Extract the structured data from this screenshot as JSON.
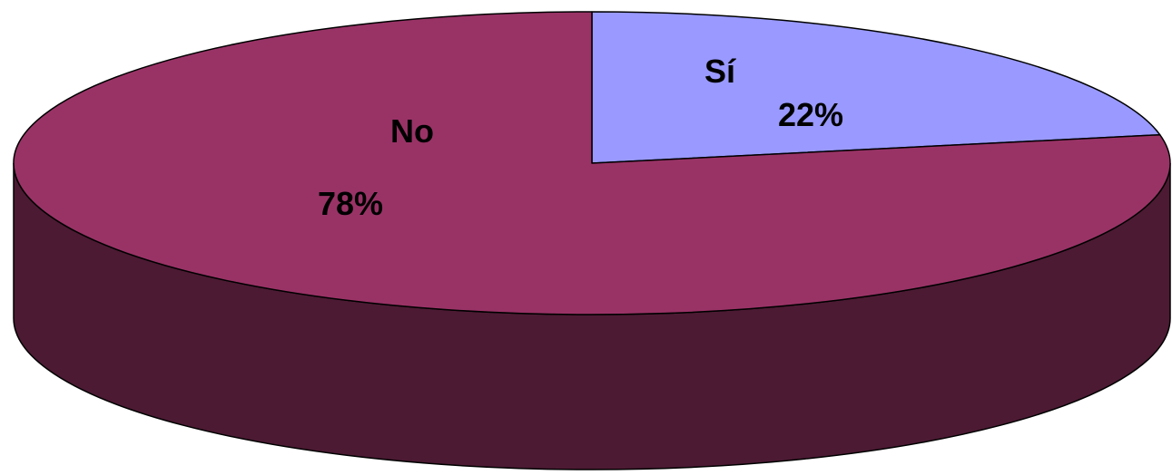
{
  "chart_data": {
    "type": "pie",
    "style": "3d",
    "title": "",
    "slices": [
      {
        "label": "Sí",
        "value": 22,
        "value_label": "22%",
        "color": "#9999FF"
      },
      {
        "label": "No",
        "value": 78,
        "value_label": "78%",
        "color": "#993366"
      }
    ],
    "side_color": "#4C1A33",
    "outline_color": "#000000"
  }
}
